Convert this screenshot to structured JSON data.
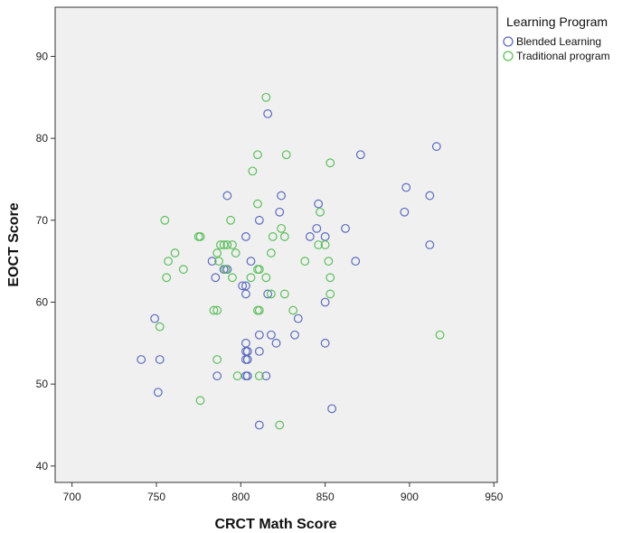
{
  "chart_data": {
    "type": "scatter",
    "xlabel": "CRCT Math Score",
    "ylabel": "EOCT Score",
    "xlim": [
      690,
      952
    ],
    "ylim": [
      38,
      96
    ],
    "xticks": [
      700,
      750,
      800,
      850,
      900,
      950
    ],
    "yticks": [
      40,
      50,
      60,
      70,
      80,
      90
    ],
    "grid": false,
    "plot_background": "#f0f0f0",
    "legend": {
      "title": "Learning Program",
      "placement": "outside-top-right"
    },
    "series": [
      {
        "name": "Blended Learning",
        "color": "#5b6bbf",
        "marker": "open-circle",
        "points": [
          [
            816,
            83
          ],
          [
            916,
            79
          ],
          [
            871,
            78
          ],
          [
            898,
            74
          ],
          [
            912,
            73
          ],
          [
            792,
            73
          ],
          [
            824,
            73
          ],
          [
            846,
            72
          ],
          [
            823,
            71
          ],
          [
            897,
            71
          ],
          [
            811,
            70
          ],
          [
            862,
            69
          ],
          [
            845,
            69
          ],
          [
            803,
            68
          ],
          [
            841,
            68
          ],
          [
            850,
            68
          ],
          [
            912,
            67
          ],
          [
            783,
            65
          ],
          [
            806,
            65
          ],
          [
            868,
            65
          ],
          [
            790,
            64
          ],
          [
            792,
            64
          ],
          [
            785,
            63
          ],
          [
            801,
            62
          ],
          [
            803,
            62
          ],
          [
            803,
            61
          ],
          [
            816,
            61
          ],
          [
            850,
            60
          ],
          [
            749,
            58
          ],
          [
            834,
            58
          ],
          [
            811,
            56
          ],
          [
            818,
            56
          ],
          [
            832,
            56
          ],
          [
            803,
            55
          ],
          [
            821,
            55
          ],
          [
            850,
            55
          ],
          [
            803,
            54
          ],
          [
            804,
            54
          ],
          [
            811,
            54
          ],
          [
            741,
            53
          ],
          [
            752,
            53
          ],
          [
            803,
            53
          ],
          [
            804,
            53
          ],
          [
            786,
            51
          ],
          [
            803,
            51
          ],
          [
            804,
            51
          ],
          [
            815,
            51
          ],
          [
            751,
            49
          ],
          [
            854,
            47
          ],
          [
            811,
            45
          ]
        ]
      },
      {
        "name": "Traditional program",
        "color": "#5cbf5c",
        "marker": "open-circle",
        "points": [
          [
            815,
            85
          ],
          [
            810,
            78
          ],
          [
            827,
            78
          ],
          [
            853,
            77
          ],
          [
            807,
            76
          ],
          [
            810,
            72
          ],
          [
            847,
            71
          ],
          [
            755,
            70
          ],
          [
            794,
            70
          ],
          [
            824,
            69
          ],
          [
            775,
            68
          ],
          [
            776,
            68
          ],
          [
            819,
            68
          ],
          [
            826,
            68
          ],
          [
            788,
            67
          ],
          [
            790,
            67
          ],
          [
            792,
            67
          ],
          [
            795,
            67
          ],
          [
            846,
            67
          ],
          [
            850,
            67
          ],
          [
            761,
            66
          ],
          [
            786,
            66
          ],
          [
            797,
            66
          ],
          [
            818,
            66
          ],
          [
            757,
            65
          ],
          [
            787,
            65
          ],
          [
            838,
            65
          ],
          [
            852,
            65
          ],
          [
            766,
            64
          ],
          [
            791,
            64
          ],
          [
            810,
            64
          ],
          [
            811,
            64
          ],
          [
            756,
            63
          ],
          [
            795,
            63
          ],
          [
            806,
            63
          ],
          [
            815,
            63
          ],
          [
            853,
            63
          ],
          [
            818,
            61
          ],
          [
            826,
            61
          ],
          [
            853,
            61
          ],
          [
            784,
            59
          ],
          [
            786,
            59
          ],
          [
            810,
            59
          ],
          [
            811,
            59
          ],
          [
            831,
            59
          ],
          [
            752,
            57
          ],
          [
            918,
            56
          ],
          [
            786,
            53
          ],
          [
            798,
            51
          ],
          [
            811,
            51
          ],
          [
            776,
            48
          ],
          [
            823,
            45
          ]
        ]
      }
    ]
  }
}
